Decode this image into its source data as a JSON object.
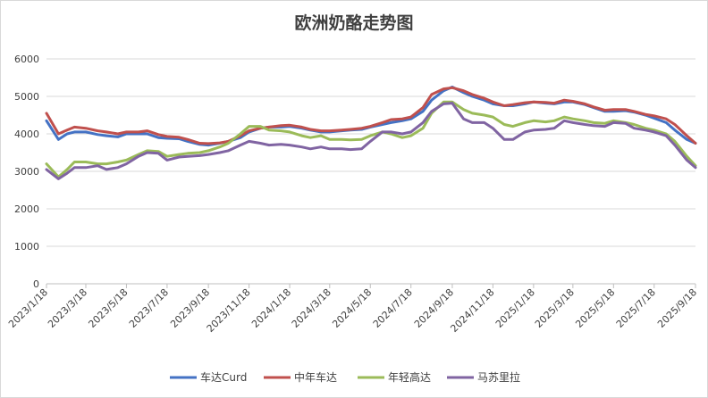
{
  "chart_data": {
    "type": "line",
    "title": "欧洲奶酪走势图",
    "xlabel": "",
    "ylabel": "",
    "ylim": [
      0,
      6000
    ],
    "yticks": [
      "0",
      "1000",
      "2000",
      "3000",
      "4000",
      "5000",
      "6000"
    ],
    "xticks": [
      "2023/1/18",
      "2023/3/18",
      "2023/5/18",
      "2023/7/18",
      "2023/9/18",
      "2023/11/18",
      "2024/1/18",
      "2024/3/18",
      "2024/5/18",
      "2024/7/18",
      "2024/9/18",
      "2024/11/18",
      "2025/1/18",
      "2025/3/18",
      "2025/5/18",
      "2025/7/18",
      "2025/9/18"
    ],
    "grid": "horizontal",
    "legend_position": "bottom",
    "series": [
      {
        "name": "车达Curd",
        "color": "#4472c4",
        "points": [
          [
            "2023/1/18",
            4350
          ],
          [
            "2023/2/5",
            3850
          ],
          [
            "2023/2/18",
            4000
          ],
          [
            "2023/3/1",
            4050
          ],
          [
            "2023/3/18",
            4050
          ],
          [
            "2023/4/5",
            3980
          ],
          [
            "2023/4/18",
            3950
          ],
          [
            "2023/5/5",
            3920
          ],
          [
            "2023/5/18",
            4000
          ],
          [
            "2023/6/5",
            4000
          ],
          [
            "2023/6/18",
            4000
          ],
          [
            "2023/7/5",
            3900
          ],
          [
            "2023/7/18",
            3880
          ],
          [
            "2023/8/5",
            3870
          ],
          [
            "2023/8/18",
            3800
          ],
          [
            "2023/9/5",
            3720
          ],
          [
            "2023/9/18",
            3700
          ],
          [
            "2023/10/5",
            3750
          ],
          [
            "2023/10/18",
            3800
          ],
          [
            "2023/11/5",
            3900
          ],
          [
            "2023/11/18",
            4050
          ],
          [
            "2023/12/5",
            4150
          ],
          [
            "2023/12/18",
            4180
          ],
          [
            "2024/1/5",
            4180
          ],
          [
            "2024/1/18",
            4200
          ],
          [
            "2024/2/5",
            4150
          ],
          [
            "2024/2/18",
            4100
          ],
          [
            "2024/3/5",
            4050
          ],
          [
            "2024/3/18",
            4050
          ],
          [
            "2024/4/5",
            4080
          ],
          [
            "2024/4/18",
            4100
          ],
          [
            "2024/5/5",
            4120
          ],
          [
            "2024/5/18",
            4180
          ],
          [
            "2024/6/5",
            4250
          ],
          [
            "2024/6/18",
            4300
          ],
          [
            "2024/7/5",
            4350
          ],
          [
            "2024/7/18",
            4400
          ],
          [
            "2024/8/5",
            4600
          ],
          [
            "2024/8/18",
            4900
          ],
          [
            "2024/9/5",
            5150
          ],
          [
            "2024/9/18",
            5250
          ],
          [
            "2024/10/5",
            5100
          ],
          [
            "2024/10/18",
            5000
          ],
          [
            "2024/11/5",
            4900
          ],
          [
            "2024/11/18",
            4800
          ],
          [
            "2024/12/5",
            4750
          ],
          [
            "2024/12/18",
            4750
          ],
          [
            "2025/1/5",
            4800
          ],
          [
            "2025/1/18",
            4850
          ],
          [
            "2025/2/5",
            4820
          ],
          [
            "2025/2/18",
            4800
          ],
          [
            "2025/3/5",
            4850
          ],
          [
            "2025/3/18",
            4850
          ],
          [
            "2025/4/5",
            4780
          ],
          [
            "2025/4/18",
            4700
          ],
          [
            "2025/5/5",
            4600
          ],
          [
            "2025/5/18",
            4600
          ],
          [
            "2025/6/5",
            4620
          ],
          [
            "2025/6/18",
            4580
          ],
          [
            "2025/7/5",
            4500
          ],
          [
            "2025/7/18",
            4420
          ],
          [
            "2025/8/5",
            4300
          ],
          [
            "2025/8/18",
            4100
          ],
          [
            "2025/9/5",
            3850
          ],
          [
            "2025/9/18",
            3750
          ]
        ]
      },
      {
        "name": "中年车达",
        "color": "#c0504d",
        "points": [
          [
            "2023/1/18",
            4550
          ],
          [
            "2023/2/5",
            4000
          ],
          [
            "2023/2/18",
            4100
          ],
          [
            "2023/3/1",
            4180
          ],
          [
            "2023/3/18",
            4150
          ],
          [
            "2023/4/5",
            4080
          ],
          [
            "2023/4/18",
            4050
          ],
          [
            "2023/5/5",
            4000
          ],
          [
            "2023/5/18",
            4050
          ],
          [
            "2023/6/5",
            4050
          ],
          [
            "2023/6/18",
            4080
          ],
          [
            "2023/7/5",
            3980
          ],
          [
            "2023/7/18",
            3930
          ],
          [
            "2023/8/5",
            3910
          ],
          [
            "2023/8/18",
            3850
          ],
          [
            "2023/9/5",
            3750
          ],
          [
            "2023/9/18",
            3740
          ],
          [
            "2023/10/5",
            3760
          ],
          [
            "2023/10/18",
            3800
          ],
          [
            "2023/11/5",
            3950
          ],
          [
            "2023/11/18",
            4080
          ],
          [
            "2023/12/5",
            4150
          ],
          [
            "2023/12/18",
            4180
          ],
          [
            "2024/1/5",
            4220
          ],
          [
            "2024/1/18",
            4230
          ],
          [
            "2024/2/5",
            4180
          ],
          [
            "2024/2/18",
            4120
          ],
          [
            "2024/3/5",
            4080
          ],
          [
            "2024/3/18",
            4080
          ],
          [
            "2024/4/5",
            4100
          ],
          [
            "2024/4/18",
            4120
          ],
          [
            "2024/5/5",
            4150
          ],
          [
            "2024/5/18",
            4200
          ],
          [
            "2024/6/5",
            4300
          ],
          [
            "2024/6/18",
            4380
          ],
          [
            "2024/7/5",
            4400
          ],
          [
            "2024/7/18",
            4450
          ],
          [
            "2024/8/5",
            4700
          ],
          [
            "2024/8/18",
            5050
          ],
          [
            "2024/9/5",
            5200
          ],
          [
            "2024/9/18",
            5230
          ],
          [
            "2024/10/5",
            5150
          ],
          [
            "2024/10/18",
            5050
          ],
          [
            "2024/11/5",
            4950
          ],
          [
            "2024/11/18",
            4850
          ],
          [
            "2024/12/5",
            4750
          ],
          [
            "2024/12/18",
            4780
          ],
          [
            "2025/1/5",
            4830
          ],
          [
            "2025/1/18",
            4850
          ],
          [
            "2025/2/5",
            4840
          ],
          [
            "2025/2/18",
            4820
          ],
          [
            "2025/3/5",
            4900
          ],
          [
            "2025/3/18",
            4870
          ],
          [
            "2025/4/5",
            4800
          ],
          [
            "2025/4/18",
            4720
          ],
          [
            "2025/5/5",
            4630
          ],
          [
            "2025/5/18",
            4650
          ],
          [
            "2025/6/5",
            4650
          ],
          [
            "2025/6/18",
            4600
          ],
          [
            "2025/7/5",
            4520
          ],
          [
            "2025/7/18",
            4480
          ],
          [
            "2025/8/5",
            4400
          ],
          [
            "2025/8/18",
            4250
          ],
          [
            "2025/9/5",
            3950
          ],
          [
            "2025/9/18",
            3750
          ]
        ]
      },
      {
        "name": "年轻高达",
        "color": "#9bbb59",
        "points": [
          [
            "2023/1/18",
            3200
          ],
          [
            "2023/2/5",
            2850
          ],
          [
            "2023/2/18",
            3050
          ],
          [
            "2023/3/1",
            3250
          ],
          [
            "2023/3/18",
            3250
          ],
          [
            "2023/4/5",
            3200
          ],
          [
            "2023/4/18",
            3200
          ],
          [
            "2023/5/5",
            3250
          ],
          [
            "2023/5/18",
            3300
          ],
          [
            "2023/6/5",
            3450
          ],
          [
            "2023/6/18",
            3550
          ],
          [
            "2023/7/5",
            3530
          ],
          [
            "2023/7/18",
            3400
          ],
          [
            "2023/8/5",
            3450
          ],
          [
            "2023/8/18",
            3480
          ],
          [
            "2023/9/5",
            3500
          ],
          [
            "2023/9/18",
            3550
          ],
          [
            "2023/10/5",
            3650
          ],
          [
            "2023/10/18",
            3750
          ],
          [
            "2023/11/5",
            4000
          ],
          [
            "2023/11/18",
            4200
          ],
          [
            "2023/12/5",
            4200
          ],
          [
            "2023/12/18",
            4100
          ],
          [
            "2024/1/5",
            4080
          ],
          [
            "2024/1/18",
            4050
          ],
          [
            "2024/2/5",
            3950
          ],
          [
            "2024/2/18",
            3900
          ],
          [
            "2024/3/5",
            3950
          ],
          [
            "2024/3/18",
            3850
          ],
          [
            "2024/4/5",
            3850
          ],
          [
            "2024/4/18",
            3840
          ],
          [
            "2024/5/5",
            3850
          ],
          [
            "2024/5/18",
            3950
          ],
          [
            "2024/6/5",
            4050
          ],
          [
            "2024/6/18",
            4000
          ],
          [
            "2024/7/5",
            3900
          ],
          [
            "2024/7/18",
            3950
          ],
          [
            "2024/8/5",
            4150
          ],
          [
            "2024/8/18",
            4550
          ],
          [
            "2024/9/5",
            4850
          ],
          [
            "2024/9/18",
            4850
          ],
          [
            "2024/10/5",
            4650
          ],
          [
            "2024/10/18",
            4550
          ],
          [
            "2024/11/5",
            4500
          ],
          [
            "2024/11/18",
            4450
          ],
          [
            "2024/12/5",
            4250
          ],
          [
            "2024/12/18",
            4200
          ],
          [
            "2025/1/5",
            4300
          ],
          [
            "2025/1/18",
            4350
          ],
          [
            "2025/2/5",
            4320
          ],
          [
            "2025/2/18",
            4350
          ],
          [
            "2025/3/5",
            4450
          ],
          [
            "2025/3/18",
            4400
          ],
          [
            "2025/4/5",
            4350
          ],
          [
            "2025/4/18",
            4300
          ],
          [
            "2025/5/5",
            4280
          ],
          [
            "2025/5/18",
            4350
          ],
          [
            "2025/6/5",
            4300
          ],
          [
            "2025/6/18",
            4250
          ],
          [
            "2025/7/5",
            4150
          ],
          [
            "2025/7/18",
            4100
          ],
          [
            "2025/8/5",
            4000
          ],
          [
            "2025/8/18",
            3800
          ],
          [
            "2025/9/5",
            3400
          ],
          [
            "2025/9/18",
            3150
          ]
        ]
      },
      {
        "name": "马苏里拉",
        "color": "#8064a2",
        "points": [
          [
            "2023/1/18",
            3050
          ],
          [
            "2023/2/5",
            2800
          ],
          [
            "2023/2/18",
            2950
          ],
          [
            "2023/3/1",
            3100
          ],
          [
            "2023/3/18",
            3100
          ],
          [
            "2023/4/5",
            3150
          ],
          [
            "2023/4/18",
            3050
          ],
          [
            "2023/5/5",
            3100
          ],
          [
            "2023/5/18",
            3200
          ],
          [
            "2023/6/5",
            3400
          ],
          [
            "2023/6/18",
            3500
          ],
          [
            "2023/7/5",
            3480
          ],
          [
            "2023/7/18",
            3300
          ],
          [
            "2023/8/5",
            3380
          ],
          [
            "2023/8/18",
            3400
          ],
          [
            "2023/9/5",
            3420
          ],
          [
            "2023/9/18",
            3450
          ],
          [
            "2023/10/5",
            3500
          ],
          [
            "2023/10/18",
            3550
          ],
          [
            "2023/11/5",
            3700
          ],
          [
            "2023/11/18",
            3800
          ],
          [
            "2023/12/5",
            3750
          ],
          [
            "2023/12/18",
            3700
          ],
          [
            "2024/1/5",
            3720
          ],
          [
            "2024/1/18",
            3700
          ],
          [
            "2024/2/5",
            3650
          ],
          [
            "2024/2/18",
            3600
          ],
          [
            "2024/3/5",
            3650
          ],
          [
            "2024/3/18",
            3600
          ],
          [
            "2024/4/5",
            3600
          ],
          [
            "2024/4/18",
            3580
          ],
          [
            "2024/5/5",
            3600
          ],
          [
            "2024/5/18",
            3800
          ],
          [
            "2024/6/5",
            4050
          ],
          [
            "2024/6/18",
            4050
          ],
          [
            "2024/7/5",
            4000
          ],
          [
            "2024/7/18",
            4050
          ],
          [
            "2024/8/5",
            4300
          ],
          [
            "2024/8/18",
            4600
          ],
          [
            "2024/9/5",
            4800
          ],
          [
            "2024/9/18",
            4820
          ],
          [
            "2024/10/5",
            4400
          ],
          [
            "2024/10/18",
            4300
          ],
          [
            "2024/11/5",
            4300
          ],
          [
            "2024/11/18",
            4150
          ],
          [
            "2024/12/5",
            3850
          ],
          [
            "2024/12/18",
            3850
          ],
          [
            "2025/1/5",
            4050
          ],
          [
            "2025/1/18",
            4100
          ],
          [
            "2025/2/5",
            4120
          ],
          [
            "2025/2/18",
            4150
          ],
          [
            "2025/3/5",
            4350
          ],
          [
            "2025/3/18",
            4300
          ],
          [
            "2025/4/5",
            4250
          ],
          [
            "2025/4/18",
            4220
          ],
          [
            "2025/5/5",
            4200
          ],
          [
            "2025/5/18",
            4300
          ],
          [
            "2025/6/5",
            4280
          ],
          [
            "2025/6/18",
            4150
          ],
          [
            "2025/7/5",
            4100
          ],
          [
            "2025/7/18",
            4050
          ],
          [
            "2025/8/5",
            3950
          ],
          [
            "2025/8/18",
            3700
          ],
          [
            "2025/9/5",
            3300
          ],
          [
            "2025/9/18",
            3100
          ]
        ]
      }
    ]
  }
}
